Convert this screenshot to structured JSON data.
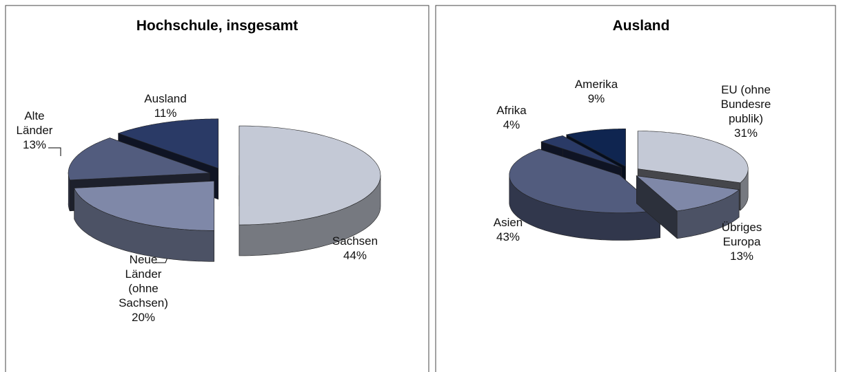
{
  "chart_data": [
    {
      "type": "pie",
      "title": "Hochschule, insgesamt",
      "categories": [
        "Sachsen",
        "Neue\nLänder\n(ohne\nSachsen)",
        "Alte\nLänder",
        "Ausland"
      ],
      "values": [
        44,
        20,
        13,
        11
      ],
      "value_labels": [
        "44%",
        "20%",
        "13%",
        "11%"
      ],
      "colors": [
        "#c4c9d6",
        "#7f88a8",
        "#525c7e",
        "#2a3a66"
      ]
    },
    {
      "type": "pie",
      "title": "Ausland",
      "categories": [
        "EU (ohne\nBundesre\npublik)",
        "Übriges\nEuropa",
        "Asien",
        "Afrika",
        "Amerika"
      ],
      "values": [
        31,
        13,
        43,
        4,
        9
      ],
      "value_labels": [
        "31%",
        "13%",
        "43%",
        "4%",
        "9%"
      ],
      "colors": [
        "#c4c9d6",
        "#7f88a8",
        "#525c7e",
        "#2a3a66",
        "#0f2550"
      ]
    }
  ]
}
